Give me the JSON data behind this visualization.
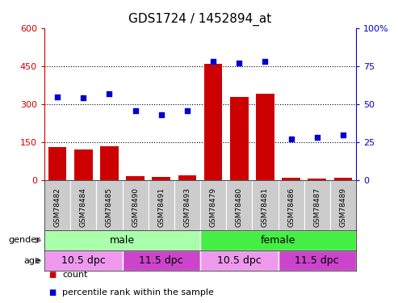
{
  "title": "GDS1724 / 1452894_at",
  "samples": [
    "GSM78482",
    "GSM78484",
    "GSM78485",
    "GSM78490",
    "GSM78491",
    "GSM78493",
    "GSM78479",
    "GSM78480",
    "GSM78481",
    "GSM78486",
    "GSM78487",
    "GSM78489"
  ],
  "counts": [
    130,
    120,
    135,
    15,
    12,
    18,
    460,
    330,
    340,
    8,
    5,
    10
  ],
  "percentiles": [
    55,
    54,
    57,
    46,
    43,
    46,
    78,
    77,
    78,
    27,
    28,
    30
  ],
  "ylim_left": [
    0,
    600
  ],
  "ylim_right": [
    0,
    100
  ],
  "yticks_left": [
    0,
    150,
    300,
    450,
    600
  ],
  "yticks_right": [
    0,
    25,
    50,
    75,
    100
  ],
  "bar_color": "#cc0000",
  "dot_color": "#0000cc",
  "gender_male_color": "#aaffaa",
  "gender_female_color": "#44ee44",
  "age_light_color": "#ee99ee",
  "age_dark_color": "#cc44cc",
  "xlabel_bg": "#cccccc",
  "legend_count_color": "#cc0000",
  "legend_pct_color": "#0000cc",
  "right_axis_color": "#0000cc",
  "left_axis_color": "#cc0000",
  "age_configs": [
    [
      0,
      3,
      "10.5 dpc",
      "#ee99ee"
    ],
    [
      3,
      6,
      "11.5 dpc",
      "#cc44cc"
    ],
    [
      6,
      9,
      "10.5 dpc",
      "#ee99ee"
    ],
    [
      9,
      12,
      "11.5 dpc",
      "#cc44cc"
    ]
  ]
}
